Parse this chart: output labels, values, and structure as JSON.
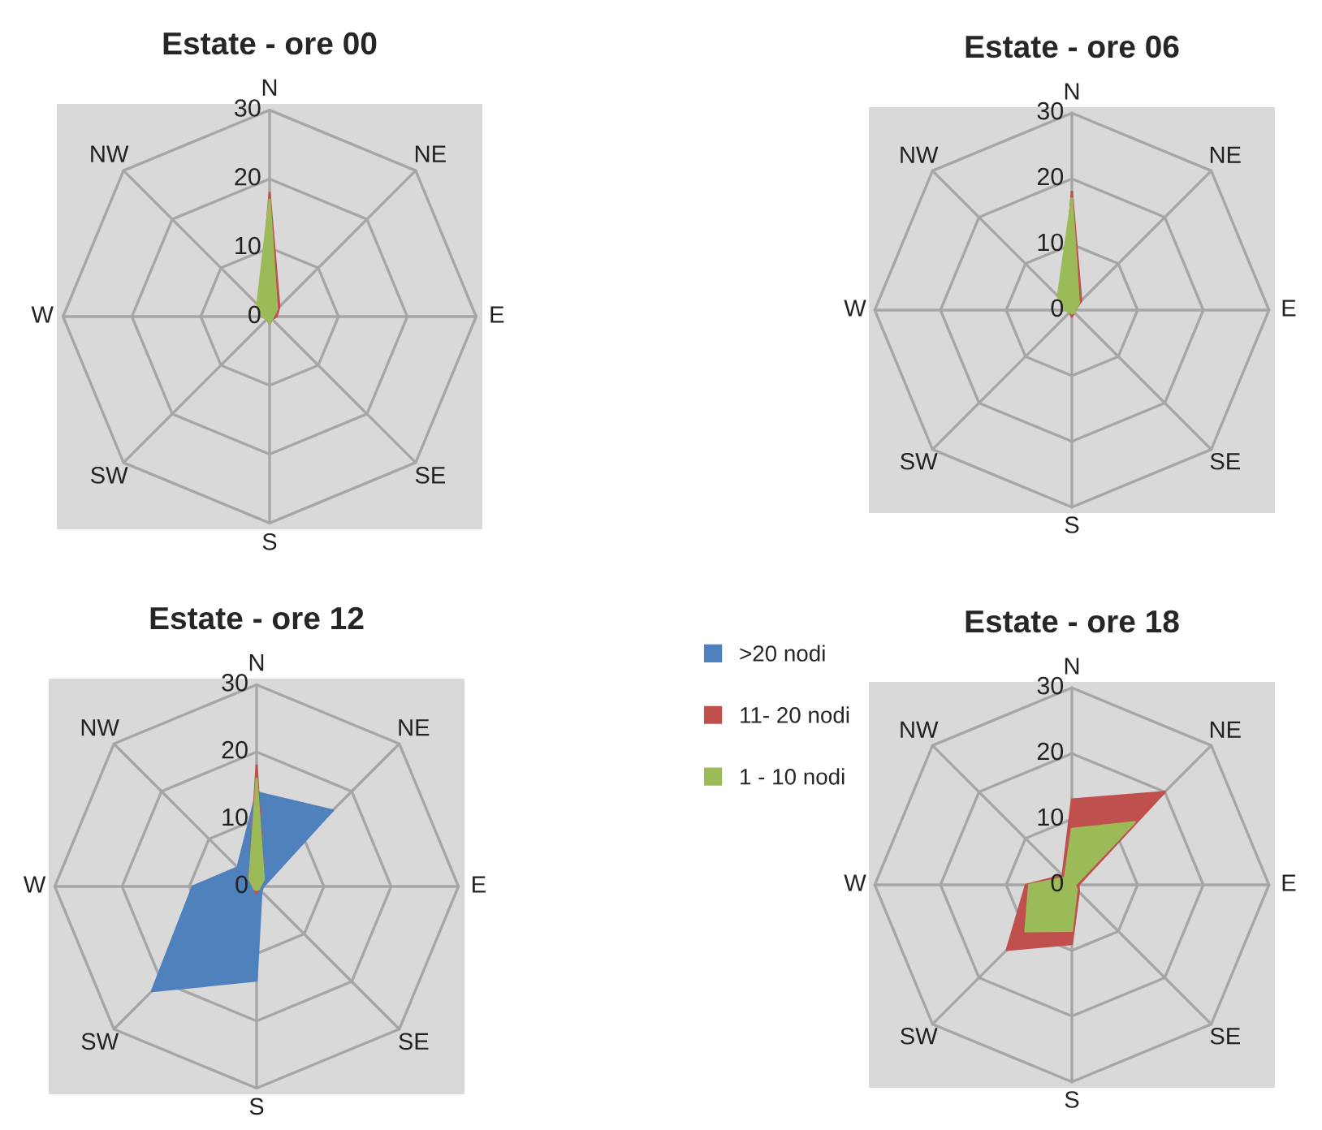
{
  "chart_data": [
    {
      "type": "radar",
      "title": "Estate - ore 00",
      "categories": [
        "N",
        "NE",
        "E",
        "SE",
        "S",
        "SW",
        "W",
        "NW"
      ],
      "ylim": [
        0,
        30
      ],
      "yticks": [
        0,
        10,
        20,
        30
      ],
      "grid": true,
      "series": [
        {
          "color": "#c0504d",
          "values": [
            18,
            2,
            1,
            0.5,
            1,
            0.5,
            1,
            2
          ]
        },
        {
          "color": "#9bbb59",
          "values": [
            17,
            1.5,
            0.5,
            0.5,
            1,
            0.5,
            1,
            2.5
          ]
        }
      ]
    },
    {
      "type": "radar",
      "title": "Estate - ore 12",
      "categories": [
        "N",
        "NE",
        "E",
        "SE",
        "S",
        "SW",
        "W",
        "NW"
      ],
      "ylim": [
        0,
        30
      ],
      "yticks": [
        0,
        10,
        20,
        30
      ],
      "grid": true,
      "legend": "right",
      "series": [
        {
          "name": ">20 nodi",
          "color": "#4f81bd",
          "values": [
            14,
            16,
            1,
            1,
            14,
            22,
            9.5,
            4
          ]
        },
        {
          "name": "11- 20 nodi",
          "color": "#c0504d",
          "values": [
            18,
            1.5,
            0.5,
            0.5,
            1,
            0.5,
            0.5,
            1.5
          ]
        },
        {
          "name": "1 - 10 nodi",
          "color": "#9bbb59",
          "values": [
            16,
            1.5,
            0.5,
            0.5,
            0.5,
            0.5,
            0.5,
            1.5
          ]
        }
      ]
    },
    {
      "type": "radar",
      "title": "Estate - ore 06",
      "categories": [
        "N",
        "NE",
        "E",
        "SE",
        "S",
        "SW",
        "W",
        "NW"
      ],
      "ylim": [
        0,
        30
      ],
      "yticks": [
        0,
        10,
        20,
        30
      ],
      "grid": true,
      "series": [
        {
          "color": "#c0504d",
          "values": [
            18,
            2,
            0.5,
            0.5,
            1,
            0.5,
            0.5,
            2
          ]
        },
        {
          "color": "#9bbb59",
          "values": [
            17,
            1.5,
            0.5,
            0.5,
            0.5,
            0.5,
            1,
            3
          ]
        }
      ]
    },
    {
      "type": "radar",
      "title": "Estate - ore 18",
      "categories": [
        "N",
        "NE",
        "E",
        "SE",
        "S",
        "SW",
        "W",
        "NW"
      ],
      "ylim": [
        0,
        30
      ],
      "yticks": [
        0,
        10,
        20,
        30
      ],
      "grid": true,
      "series": [
        {
          "color": "#c0504d",
          "values": [
            13,
            20,
            1,
            1.5,
            9,
            14,
            7,
            2
          ]
        },
        {
          "color": "#9bbb59",
          "values": [
            8.5,
            13.5,
            0.5,
            1,
            7,
            10,
            6.5,
            1.5
          ]
        }
      ]
    }
  ]
}
